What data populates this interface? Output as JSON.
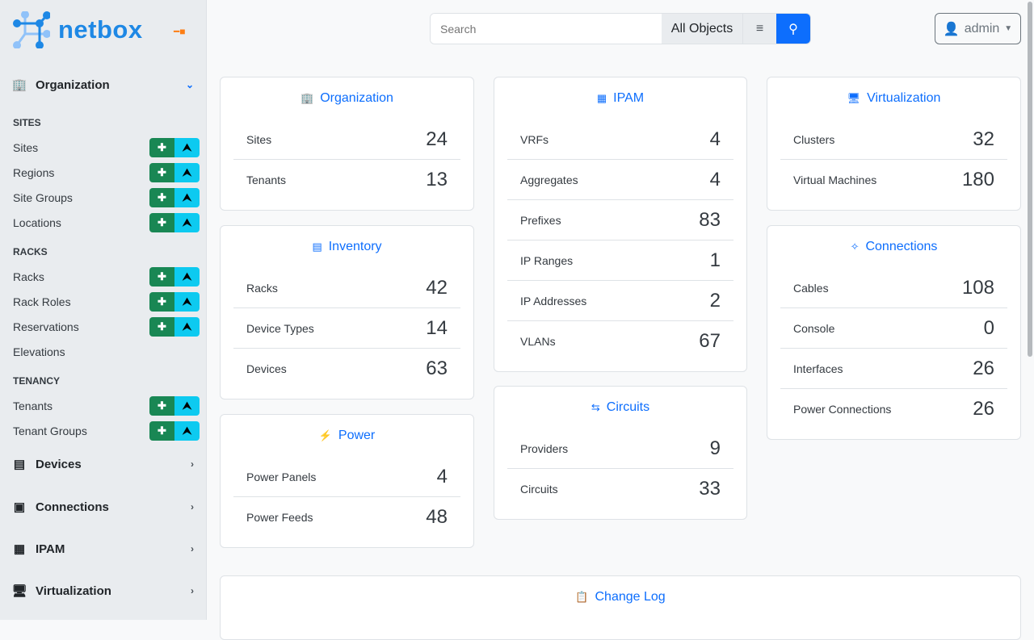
{
  "brand": {
    "name": "netbox",
    "color": "#1e88e5"
  },
  "sidebar": {
    "organization": {
      "label": "Organization",
      "icon": "building-icon"
    },
    "groups": [
      {
        "label": "SITES",
        "items": [
          {
            "label": "Sites",
            "buttons": true
          },
          {
            "label": "Regions",
            "buttons": true
          },
          {
            "label": "Site Groups",
            "buttons": true
          },
          {
            "label": "Locations",
            "buttons": true
          }
        ]
      },
      {
        "label": "RACKS",
        "items": [
          {
            "label": "Racks",
            "buttons": true
          },
          {
            "label": "Rack Roles",
            "buttons": true
          },
          {
            "label": "Reservations",
            "buttons": true
          },
          {
            "label": "Elevations",
            "buttons": false
          }
        ]
      },
      {
        "label": "TENANCY",
        "items": [
          {
            "label": "Tenants",
            "buttons": true
          },
          {
            "label": "Tenant Groups",
            "buttons": true
          }
        ]
      }
    ],
    "sections": [
      {
        "label": "Devices",
        "icon": "server-icon"
      },
      {
        "label": "Connections",
        "icon": "ethernet-icon"
      },
      {
        "label": "IPAM",
        "icon": "ipam-icon"
      },
      {
        "label": "Virtualization",
        "icon": "monitor-icon"
      }
    ]
  },
  "search": {
    "placeholder": "Search",
    "scope": "All Objects"
  },
  "user": {
    "label": "admin"
  },
  "cards": [
    {
      "title": "Organization",
      "icon": "building-icon",
      "rows": [
        {
          "label": "Sites",
          "count": "24"
        },
        {
          "label": "Tenants",
          "count": "13"
        }
      ]
    },
    {
      "title": "Inventory",
      "icon": "server-icon",
      "rows": [
        {
          "label": "Racks",
          "count": "42"
        },
        {
          "label": "Device Types",
          "count": "14"
        },
        {
          "label": "Devices",
          "count": "63"
        }
      ]
    },
    {
      "title": "Power",
      "icon": "lightning-icon",
      "rows": [
        {
          "label": "Power Panels",
          "count": "4"
        },
        {
          "label": "Power Feeds",
          "count": "48"
        }
      ]
    },
    {
      "title": "IPAM",
      "icon": "ipam-icon",
      "rows": [
        {
          "label": "VRFs",
          "count": "4"
        },
        {
          "label": "Aggregates",
          "count": "4"
        },
        {
          "label": "Prefixes",
          "count": "83"
        },
        {
          "label": "IP Ranges",
          "count": "1"
        },
        {
          "label": "IP Addresses",
          "count": "2"
        },
        {
          "label": "VLANs",
          "count": "67"
        }
      ]
    },
    {
      "title": "Circuits",
      "icon": "circuits-icon",
      "rows": [
        {
          "label": "Providers",
          "count": "9"
        },
        {
          "label": "Circuits",
          "count": "33"
        }
      ]
    },
    {
      "title": "Virtualization",
      "icon": "monitor-icon",
      "rows": [
        {
          "label": "Clusters",
          "count": "32"
        },
        {
          "label": "Virtual Machines",
          "count": "180"
        }
      ]
    },
    {
      "title": "Connections",
      "icon": "cable-icon",
      "rows": [
        {
          "label": "Cables",
          "count": "108"
        },
        {
          "label": "Console",
          "count": "0"
        },
        {
          "label": "Interfaces",
          "count": "26"
        },
        {
          "label": "Power Connections",
          "count": "26"
        }
      ]
    },
    {
      "title": "Change Log",
      "icon": "clipboard-clock-icon",
      "rows": []
    }
  ]
}
